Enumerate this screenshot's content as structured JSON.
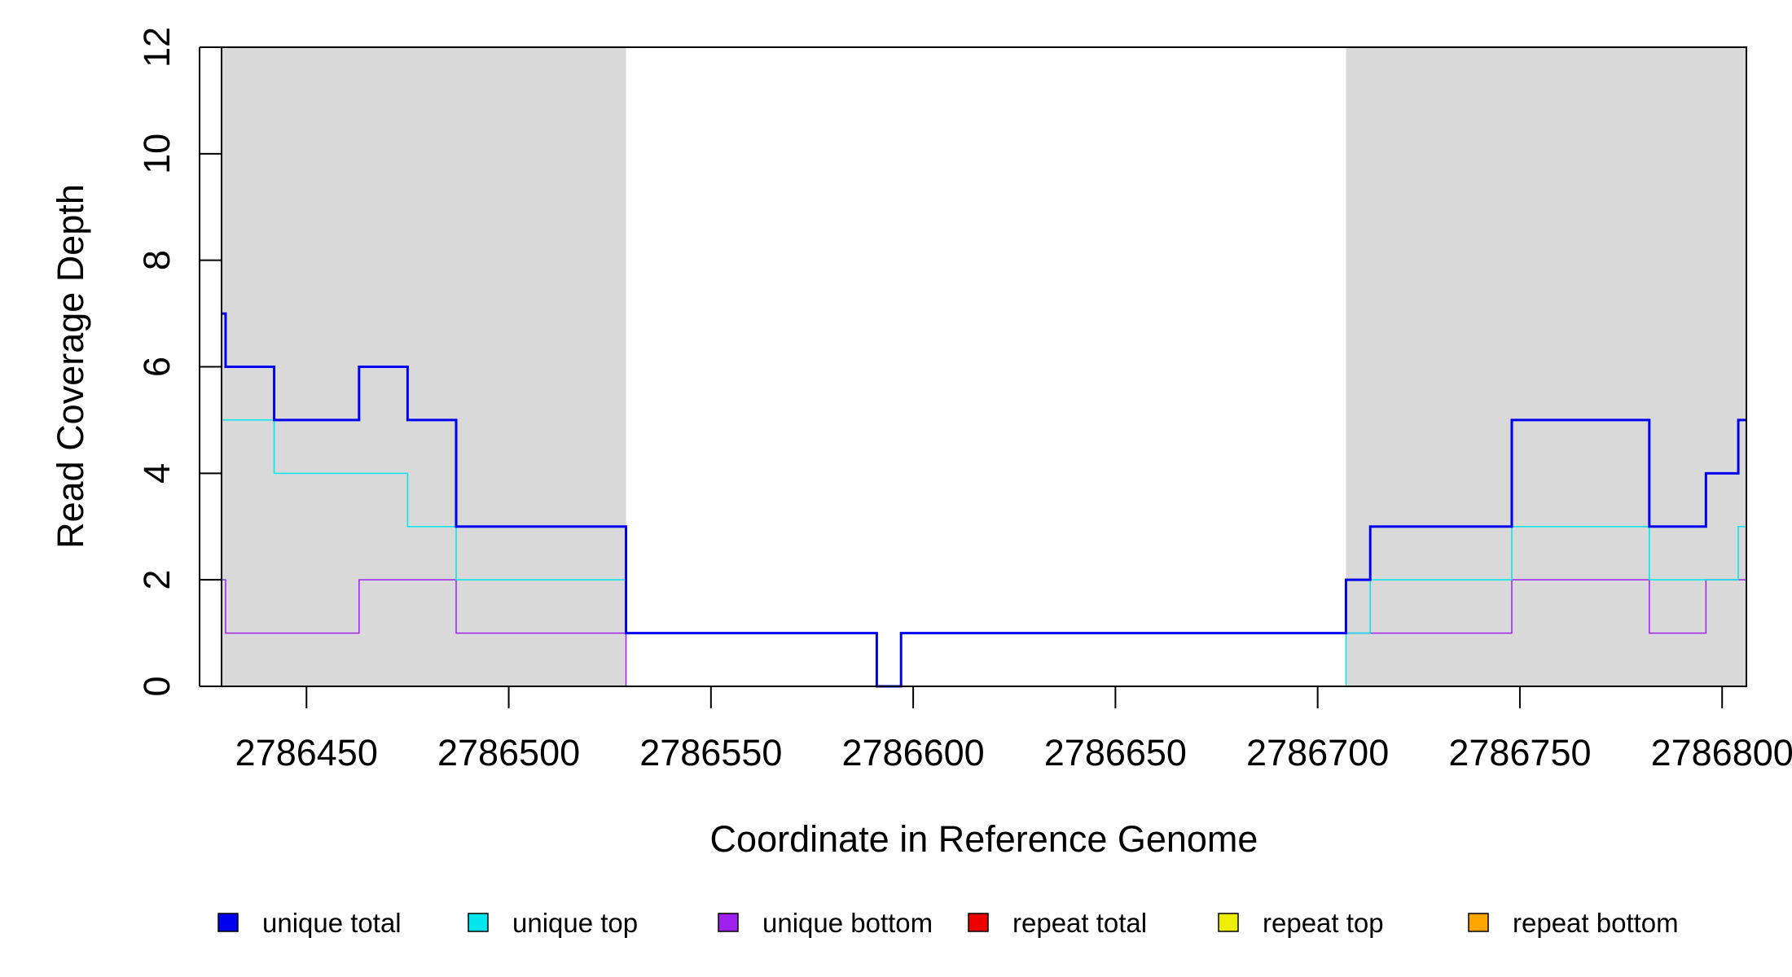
{
  "chart_data": {
    "type": "line",
    "line_shape": "step",
    "xlabel": "Coordinate in Reference Genome",
    "ylabel": "Read Coverage Depth",
    "xlim": [
      2786429,
      2786806
    ],
    "ylim": [
      0,
      12
    ],
    "x_ticks": [
      2786450,
      2786500,
      2786550,
      2786600,
      2786650,
      2786700,
      2786750,
      2786800
    ],
    "x_tick_labels": [
      "2786450",
      "2786500",
      "2786550",
      "2786600",
      "2786650",
      "2786700",
      "2786750",
      "2786800"
    ],
    "y_ticks": [
      0,
      2,
      4,
      6,
      8,
      10,
      12
    ],
    "y_tick_labels": [
      "0",
      "2",
      "4",
      "6",
      "8",
      "10",
      "12"
    ],
    "shaded_regions": [
      {
        "x": [
          2786429,
          2786529
        ],
        "color": "#d9d9d9"
      },
      {
        "x": [
          2786707,
          2786806
        ],
        "color": "#d9d9d9"
      }
    ],
    "legend_position": "bottom",
    "series": [
      {
        "name": "unique total",
        "color": "#0000ee",
        "width": 3,
        "points": [
          [
            2786429,
            7
          ],
          [
            2786430,
            6
          ],
          [
            2786442,
            5
          ],
          [
            2786463,
            6
          ],
          [
            2786475,
            5
          ],
          [
            2786487,
            3
          ],
          [
            2786529,
            1
          ],
          [
            2786591,
            0
          ],
          [
            2786597,
            1
          ],
          [
            2786707,
            2
          ],
          [
            2786713,
            3
          ],
          [
            2786748,
            5
          ],
          [
            2786782,
            3
          ],
          [
            2786796,
            4
          ],
          [
            2786804,
            5
          ],
          [
            2786806,
            5
          ]
        ]
      },
      {
        "name": "unique top",
        "color": "#00e5ee",
        "width": 1.5,
        "points": [
          [
            2786429,
            5
          ],
          [
            2786442,
            4
          ],
          [
            2786475,
            3
          ],
          [
            2786487,
            2
          ],
          [
            2786529,
            1
          ],
          [
            2786591,
            0
          ],
          [
            2786707,
            1
          ],
          [
            2786713,
            2
          ],
          [
            2786748,
            3
          ],
          [
            2786782,
            2
          ],
          [
            2786804,
            3
          ],
          [
            2786806,
            3
          ]
        ]
      },
      {
        "name": "unique bottom",
        "color": "#a020f0",
        "width": 1.5,
        "points": [
          [
            2786429,
            2
          ],
          [
            2786430,
            1
          ],
          [
            2786463,
            2
          ],
          [
            2786487,
            1
          ],
          [
            2786529,
            0
          ],
          [
            2786597,
            1
          ],
          [
            2786748,
            2
          ],
          [
            2786782,
            1
          ],
          [
            2786796,
            2
          ],
          [
            2786806,
            2
          ]
        ]
      },
      {
        "name": "repeat total",
        "color": "#ee0000",
        "width": 1.5,
        "points": [
          [
            2786429,
            0
          ],
          [
            2786806,
            0
          ]
        ]
      },
      {
        "name": "repeat top",
        "color": "#eeee00",
        "width": 1.5,
        "points": [
          [
            2786429,
            0
          ],
          [
            2786806,
            0
          ]
        ]
      },
      {
        "name": "repeat bottom",
        "color": "#ffa500",
        "width": 1.5,
        "points": [
          [
            2786429,
            0
          ],
          [
            2786806,
            0
          ]
        ]
      }
    ]
  }
}
